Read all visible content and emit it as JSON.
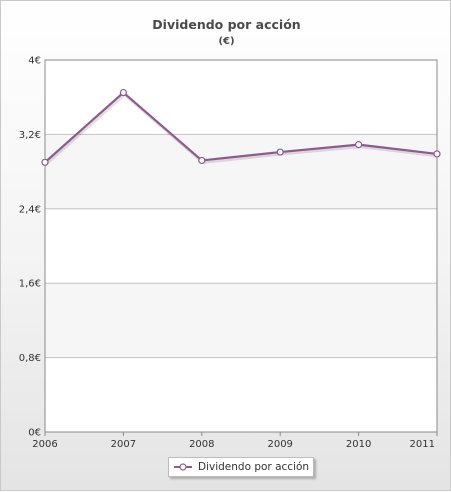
{
  "chart_data": {
    "type": "line",
    "title": "Dividendo por acción",
    "subtitle": "(€)",
    "categories": [
      "2006",
      "2007",
      "2008",
      "2009",
      "2010",
      "2011"
    ],
    "series": [
      {
        "name": "Dividendo por acción",
        "values": [
          2.9,
          3.65,
          2.92,
          3.01,
          3.09,
          2.99
        ],
        "color": "#8e5a8e"
      }
    ],
    "y_ticks": [
      "0€",
      "0,8€",
      "1,6€",
      "2,4€",
      "3,2€",
      "4€"
    ],
    "y_tick_values": [
      0,
      0.8,
      1.6,
      2.4,
      3.2,
      4
    ],
    "ylim": [
      0,
      4
    ],
    "grid": true,
    "legend_position": "bottom"
  }
}
